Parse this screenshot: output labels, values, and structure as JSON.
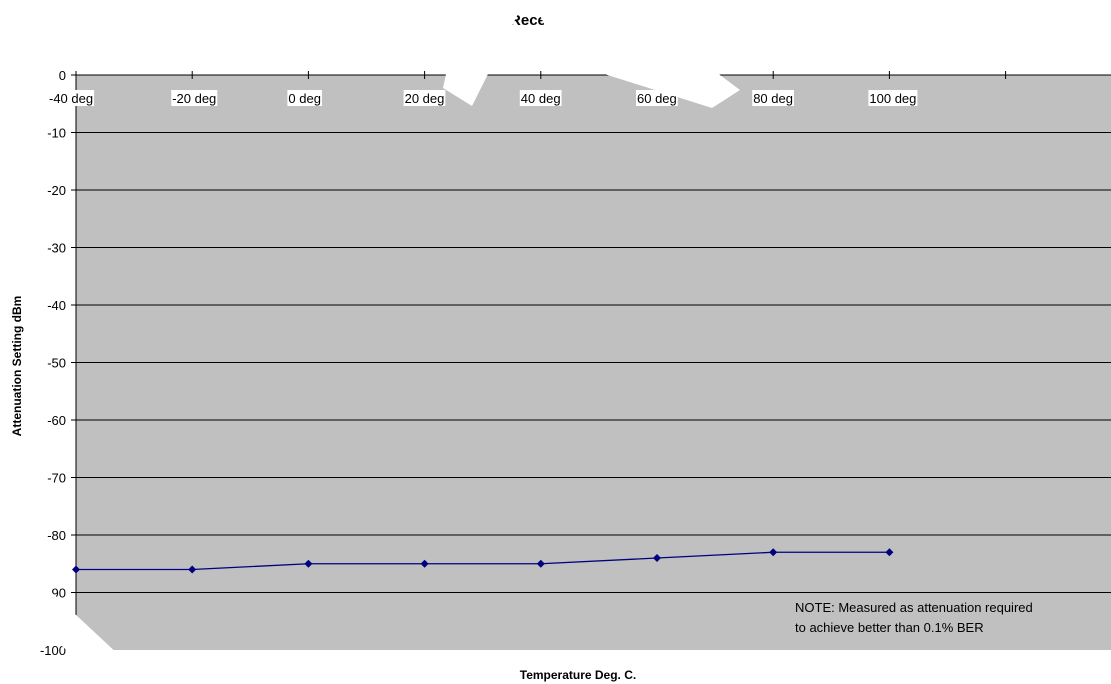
{
  "chart_data": {
    "type": "line",
    "title": "Receive Sensitivity",
    "xlabel": "Temperature Deg. C.",
    "ylabel": "Attenuation Setting dBm",
    "categories": [
      "-40 deg",
      "-20 deg",
      "0 deg",
      "20 deg",
      "40 deg",
      "60 deg",
      "80 deg",
      "100 deg"
    ],
    "series": [
      {
        "values": [
          -86,
          -86,
          -85,
          -85,
          -85,
          -84,
          -83,
          -83
        ]
      }
    ],
    "ylim": [
      -100,
      0
    ],
    "yticks": [
      "0",
      "-10",
      "-20",
      "-30",
      "-40",
      "-50",
      "-60",
      "-70",
      "-80",
      "-90",
      "-100"
    ],
    "grid": true,
    "note": [
      "NOTE: Measured as attenuation required",
      "to achieve better than 0.1% BER"
    ],
    "colors": {
      "plot_area": "#c0c0c0",
      "series": "#000080",
      "watermark": "#ffffff"
    }
  }
}
